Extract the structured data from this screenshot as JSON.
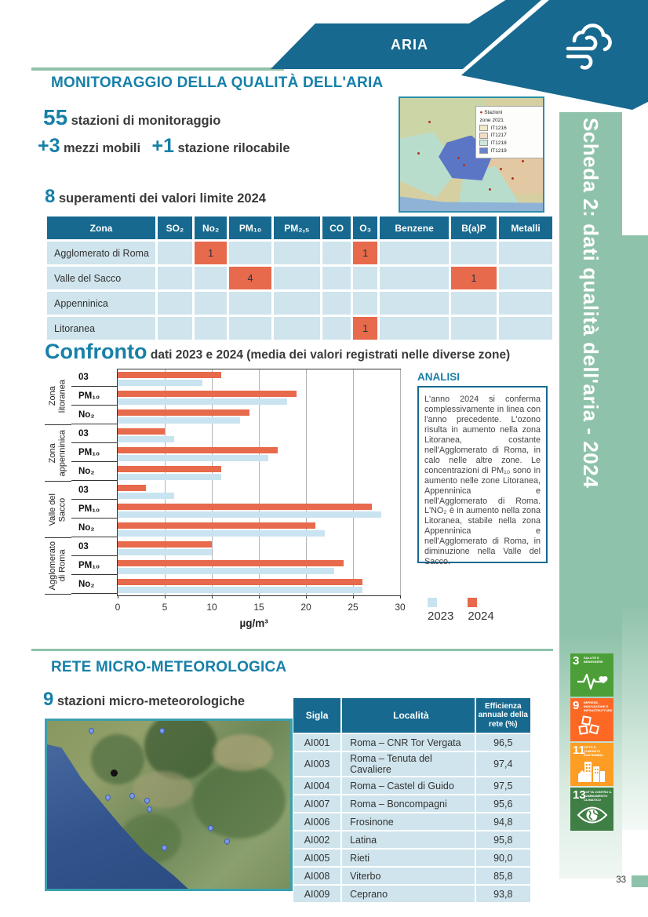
{
  "header": {
    "banner_label": "ARIA",
    "title": "MONITORAGGIO DELLA QUALITÀ DELL'ARIA"
  },
  "stats": {
    "stations_value": "55",
    "stations_label": "stazioni di monitoraggio",
    "mobile_value": "+3",
    "mobile_label": "mezzi mobili",
    "relocatable_value": "+1",
    "relocatable_label": "stazione rilocabile",
    "exceedances_value": "8",
    "exceedances_label": "superamenti dei valori limite 2024"
  },
  "zone_map": {
    "legend_stations": "Stazioni",
    "legend_subtitle": "zone 2021",
    "legend_items": [
      {
        "label": "IT1216",
        "color": "#eee8c8"
      },
      {
        "label": "IT1217",
        "color": "#f2dcc8"
      },
      {
        "label": "IT1218",
        "color": "#cfe8dc"
      },
      {
        "label": "IT1219",
        "color": "#6b83c9"
      }
    ]
  },
  "exceedances_table": {
    "columns": [
      "Zona",
      "SO₂",
      "No₂",
      "PM₁₀",
      "PM₂,₅",
      "CO",
      "O₃",
      "Benzene",
      "B(a)P",
      "Metalli"
    ],
    "rows": [
      {
        "zona": "Agglomerato di Roma",
        "values": [
          "",
          "1",
          "",
          "",
          "",
          "1",
          "",
          "",
          ""
        ]
      },
      {
        "zona": "Valle del Sacco",
        "values": [
          "",
          "",
          "4",
          "",
          "",
          "",
          "",
          "1",
          ""
        ]
      },
      {
        "zona": "Appenninica",
        "values": [
          "",
          "",
          "",
          "",
          "",
          "",
          "",
          "",
          ""
        ]
      },
      {
        "zona": "Litoranea",
        "values": [
          "",
          "",
          "",
          "",
          "",
          "1",
          "",
          "",
          ""
        ]
      }
    ]
  },
  "chart_data": {
    "type": "bar",
    "orientation": "horizontal",
    "title": "Confronto",
    "subtitle": "dati 2023 e 2024 (media dei valori registrati nelle diverse zone)",
    "xlabel": "µg/m³",
    "xlim": [
      0,
      30
    ],
    "xticks": [
      0,
      5,
      10,
      15,
      20,
      25,
      30
    ],
    "grid": true,
    "legend_position": "bottom-right",
    "series_colors": {
      "2023": "#c9e4f0",
      "2024": "#e76a4c"
    },
    "legend": [
      "2023",
      "2024"
    ],
    "groups": [
      {
        "zone": "Zona litoranea",
        "zone_lines": [
          "Zona",
          "litoranea"
        ],
        "rows": [
          {
            "label": "03",
            "v2023": 9,
            "v2024": 11
          },
          {
            "label": "PM₁₀",
            "v2023": 18,
            "v2024": 19
          },
          {
            "label": "No₂",
            "v2023": 13,
            "v2024": 14
          }
        ]
      },
      {
        "zone": "Zona appenninica",
        "zone_lines": [
          "Zona",
          "appenninica"
        ],
        "rows": [
          {
            "label": "03",
            "v2023": 6,
            "v2024": 5
          },
          {
            "label": "PM₁₀",
            "v2023": 16,
            "v2024": 17
          },
          {
            "label": "No₂",
            "v2023": 11,
            "v2024": 11
          }
        ]
      },
      {
        "zone": "Valle del Sacco",
        "zone_lines": [
          "Valle del",
          "Sacco"
        ],
        "rows": [
          {
            "label": "03",
            "v2023": 6,
            "v2024": 3
          },
          {
            "label": "PM₁₀",
            "v2023": 28,
            "v2024": 27
          },
          {
            "label": "No₂",
            "v2023": 22,
            "v2024": 21
          }
        ]
      },
      {
        "zone": "Agglomerato di Roma",
        "zone_lines": [
          "Agglomerato",
          "di Roma"
        ],
        "rows": [
          {
            "label": "03",
            "v2023": 10,
            "v2024": 10
          },
          {
            "label": "PM₁₀",
            "v2023": 23,
            "v2024": 24
          },
          {
            "label": "No₂",
            "v2023": 26,
            "v2024": 26
          }
        ]
      }
    ]
  },
  "analysis": {
    "title": "ANALISI",
    "text": "L'anno 2024 si conferma complessivamente in linea con l'anno precedente. L'ozono risulta in aumento nella zona Litoranea, costante nell'Agglomerato di Roma, in calo nelle altre zone. Le concentrazioni di PM₁₀ sono in aumento nelle zone Litoranea, Appenninica e nell'Agglomerato di Roma. L'NO₂ è in aumento nella zona Litoranea, stabile nella zona Appenninica e nell'Agglomerato di Roma, in diminuzione nella Valle del Sacco."
  },
  "meteo": {
    "title": "RETE MICRO-METEOROLOGICA",
    "count_value": "9",
    "count_label": "stazioni micro-meteorologiche",
    "table": {
      "columns": [
        "Sigla",
        "Località",
        "Efficienza annuale della rete (%)"
      ],
      "rows": [
        [
          "AI001",
          "Roma – CNR Tor Vergata",
          "96,5"
        ],
        [
          "AI003",
          "Roma – Tenuta del Cavaliere",
          "97,4"
        ],
        [
          "AI004",
          "Roma – Castel di Guido",
          "97,5"
        ],
        [
          "AI007",
          "Roma – Boncompagni",
          "95,6"
        ],
        [
          "AI006",
          "Frosinone",
          "94,8"
        ],
        [
          "AI002",
          "Latina",
          "95,8"
        ],
        [
          "AI005",
          "Rieti",
          "90,0"
        ],
        [
          "AI008",
          "Viterbo",
          "85,8"
        ],
        [
          "AI009",
          "Ceprano",
          "93,8"
        ]
      ]
    }
  },
  "sidebar": {
    "label": "Scheda 2: dati qualità dell'aria - 2024",
    "sdg_icons": [
      {
        "number": "3",
        "title": "SALUTE E BENESSERE",
        "color": "#4C9F38",
        "icon": "sdg-heartbeat-icon"
      },
      {
        "number": "9",
        "title": "IMPRESE, INNOVAZIONE E INFRASTRUTTURE",
        "color": "#FD6925",
        "icon": "sdg-blocks-icon"
      },
      {
        "number": "11",
        "title": "CITTÀ E COMUNITÀ SOSTENIBILI",
        "color": "#FD9D24",
        "icon": "sdg-buildings-icon"
      },
      {
        "number": "13",
        "title": "LOTTA CONTRO IL CAMBIAMENTO CLIMATICO",
        "color": "#3F7E44",
        "icon": "sdg-eye-globe-icon"
      }
    ]
  },
  "footer": {
    "page_number": "33"
  },
  "colors": {
    "teal_dark": "#17698f",
    "teal_heading": "#1780a8",
    "cell_blue": "#cfe4ec",
    "highlight_orange": "#e76a4c",
    "band_green": "#8fc2aa"
  }
}
